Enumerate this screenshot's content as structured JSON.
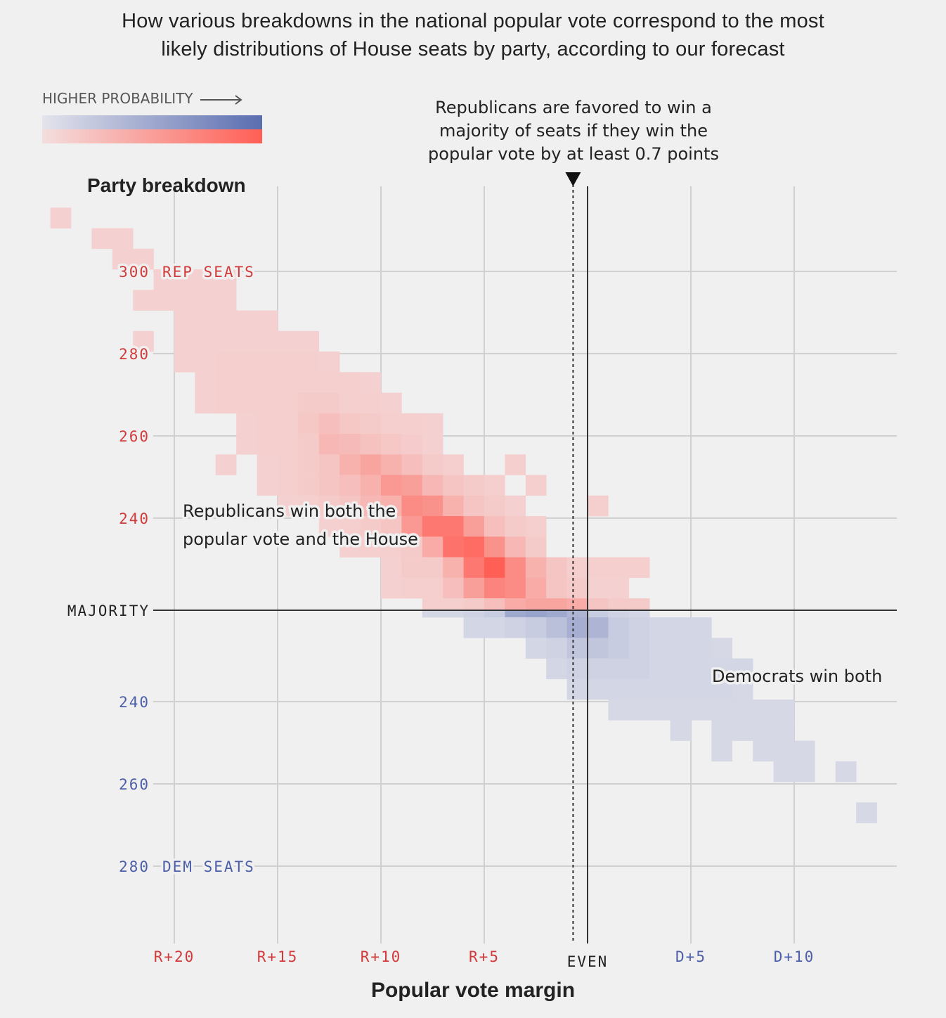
{
  "title": "How various breakdowns in the national popular vote correspond to the most likely distributions of House seats by party, according to our forecast",
  "title_lines": [
    "How various breakdowns in the national popular vote correspond to the most",
    "likely distributions of House seats by party, according to our forecast"
  ],
  "legend": {
    "label": "HIGHER PROBABILITY",
    "arrow_icon": "right-arrow-icon"
  },
  "colors": {
    "rep": "#ff5f55",
    "rep_light": "#f3dede",
    "dem": "#5a6db0",
    "dem_light": "#e4e4ec",
    "rep_text": "#d13b3b",
    "dem_text": "#4c5fa8",
    "background": "#f0f0f0",
    "grid": "#d0d0d0",
    "axis": "#333333"
  },
  "annotations": {
    "threshold": [
      "Republicans are favored to win a",
      "majority of seats if they win the",
      "popular vote by at least 0.7 points"
    ],
    "rep_win": [
      "Republicans win both the",
      "popular vote and the House"
    ],
    "dem_win": "Democrats win both"
  },
  "chart_data": {
    "type": "heatmap",
    "title": "How various breakdowns in the national popular vote correspond to the most likely distributions of House seats by party, according to our forecast",
    "xlabel": "Popular vote margin",
    "ylabel": "Party breakdown",
    "x_note": "margin in points; negative = Republican lead, positive = Democratic lead",
    "xlim": [
      -26,
      14
    ],
    "x_ticks": [
      {
        "value": -20,
        "label": "R+20",
        "party": "rep"
      },
      {
        "value": -15,
        "label": "R+15",
        "party": "rep"
      },
      {
        "value": -10,
        "label": "R+10",
        "party": "rep"
      },
      {
        "value": -5,
        "label": "R+5",
        "party": "rep"
      },
      {
        "value": 0,
        "label": "EVEN",
        "party": "none"
      },
      {
        "value": 5,
        "label": "D+5",
        "party": "dem"
      },
      {
        "value": 10,
        "label": "D+10",
        "party": "dem"
      }
    ],
    "y_ticks_rep": [
      {
        "value": 300,
        "label": "300",
        "suffix": "REP SEATS"
      },
      {
        "value": 280,
        "label": "280"
      },
      {
        "value": 260,
        "label": "260"
      },
      {
        "value": 240,
        "label": "240"
      }
    ],
    "y_ticks_dem": [
      {
        "value": 240,
        "label": "240"
      },
      {
        "value": 260,
        "label": "260"
      },
      {
        "value": 280,
        "label": "280",
        "suffix": "DEM SEATS"
      }
    ],
    "majority": {
      "label": "MAJORITY",
      "rep_seats": 218
    },
    "threshold_marker": {
      "margin": -0.7,
      "style": "dotted"
    },
    "bin": {
      "margin_width": 1,
      "seat_height": 5
    },
    "rep_cells": [
      {
        "m": -26,
        "s": 313,
        "v": 0.1
      },
      {
        "m": -24,
        "s": 308,
        "v": 0.1
      },
      {
        "m": -23,
        "s": 308,
        "v": 0.1
      },
      {
        "m": -23,
        "s": 303,
        "v": 0.1
      },
      {
        "m": -22,
        "s": 303,
        "v": 0.1
      },
      {
        "m": -21,
        "s": 298,
        "v": 0.1
      },
      {
        "m": -20,
        "s": 298,
        "v": 0.1
      },
      {
        "m": -19,
        "s": 298,
        "v": 0.1
      },
      {
        "m": -18,
        "s": 298,
        "v": 0.1
      },
      {
        "m": -22,
        "s": 293,
        "v": 0.1
      },
      {
        "m": -21,
        "s": 293,
        "v": 0.1
      },
      {
        "m": -20,
        "s": 293,
        "v": 0.1
      },
      {
        "m": -19,
        "s": 293,
        "v": 0.1
      },
      {
        "m": -18,
        "s": 293,
        "v": 0.1
      },
      {
        "m": -20,
        "s": 288,
        "v": 0.1
      },
      {
        "m": -19,
        "s": 288,
        "v": 0.1
      },
      {
        "m": -18,
        "s": 288,
        "v": 0.1
      },
      {
        "m": -17,
        "s": 288,
        "v": 0.1
      },
      {
        "m": -16,
        "s": 288,
        "v": 0.1
      },
      {
        "m": -22,
        "s": 283,
        "v": 0.1
      },
      {
        "m": -20,
        "s": 283,
        "v": 0.1
      },
      {
        "m": -19,
        "s": 283,
        "v": 0.1
      },
      {
        "m": -18,
        "s": 283,
        "v": 0.1
      },
      {
        "m": -17,
        "s": 283,
        "v": 0.1
      },
      {
        "m": -16,
        "s": 283,
        "v": 0.1
      },
      {
        "m": -15,
        "s": 283,
        "v": 0.1
      },
      {
        "m": -14,
        "s": 283,
        "v": 0.1
      },
      {
        "m": -20,
        "s": 278,
        "v": 0.1
      },
      {
        "m": -19,
        "s": 278,
        "v": 0.1
      },
      {
        "m": -18,
        "s": 278,
        "v": 0.12
      },
      {
        "m": -17,
        "s": 278,
        "v": 0.12
      },
      {
        "m": -16,
        "s": 278,
        "v": 0.12
      },
      {
        "m": -15,
        "s": 278,
        "v": 0.12
      },
      {
        "m": -14,
        "s": 278,
        "v": 0.12
      },
      {
        "m": -13,
        "s": 278,
        "v": 0.1
      },
      {
        "m": -19,
        "s": 273,
        "v": 0.1
      },
      {
        "m": -18,
        "s": 273,
        "v": 0.12
      },
      {
        "m": -17,
        "s": 273,
        "v": 0.12
      },
      {
        "m": -16,
        "s": 273,
        "v": 0.12
      },
      {
        "m": -15,
        "s": 273,
        "v": 0.12
      },
      {
        "m": -14,
        "s": 273,
        "v": 0.12
      },
      {
        "m": -13,
        "s": 273,
        "v": 0.12
      },
      {
        "m": -12,
        "s": 273,
        "v": 0.12
      },
      {
        "m": -11,
        "s": 273,
        "v": 0.1
      },
      {
        "m": -19,
        "s": 268,
        "v": 0.1
      },
      {
        "m": -18,
        "s": 268,
        "v": 0.12
      },
      {
        "m": -17,
        "s": 268,
        "v": 0.12
      },
      {
        "m": -16,
        "s": 268,
        "v": 0.12
      },
      {
        "m": -15,
        "s": 268,
        "v": 0.12
      },
      {
        "m": -14,
        "s": 268,
        "v": 0.15
      },
      {
        "m": -13,
        "s": 268,
        "v": 0.15
      },
      {
        "m": -12,
        "s": 268,
        "v": 0.12
      },
      {
        "m": -11,
        "s": 268,
        "v": 0.12
      },
      {
        "m": -10,
        "s": 268,
        "v": 0.1
      },
      {
        "m": -17,
        "s": 263,
        "v": 0.1
      },
      {
        "m": -16,
        "s": 263,
        "v": 0.12
      },
      {
        "m": -15,
        "s": 263,
        "v": 0.12
      },
      {
        "m": -14,
        "s": 263,
        "v": 0.18
      },
      {
        "m": -13,
        "s": 263,
        "v": 0.25
      },
      {
        "m": -12,
        "s": 263,
        "v": 0.18
      },
      {
        "m": -11,
        "s": 263,
        "v": 0.15
      },
      {
        "m": -10,
        "s": 263,
        "v": 0.12
      },
      {
        "m": -9,
        "s": 263,
        "v": 0.12
      },
      {
        "m": -8,
        "s": 263,
        "v": 0.1
      },
      {
        "m": -17,
        "s": 258,
        "v": 0.1
      },
      {
        "m": -16,
        "s": 258,
        "v": 0.12
      },
      {
        "m": -15,
        "s": 258,
        "v": 0.12
      },
      {
        "m": -14,
        "s": 258,
        "v": 0.15
      },
      {
        "m": -13,
        "s": 258,
        "v": 0.3
      },
      {
        "m": -12,
        "s": 258,
        "v": 0.28
      },
      {
        "m": -11,
        "s": 258,
        "v": 0.22
      },
      {
        "m": -10,
        "s": 258,
        "v": 0.18
      },
      {
        "m": -9,
        "s": 258,
        "v": 0.14
      },
      {
        "m": -8,
        "s": 258,
        "v": 0.1
      },
      {
        "m": -18,
        "s": 253,
        "v": 0.1
      },
      {
        "m": -16,
        "s": 253,
        "v": 0.1
      },
      {
        "m": -15,
        "s": 253,
        "v": 0.12
      },
      {
        "m": -14,
        "s": 253,
        "v": 0.15
      },
      {
        "m": -13,
        "s": 253,
        "v": 0.2
      },
      {
        "m": -12,
        "s": 253,
        "v": 0.35
      },
      {
        "m": -11,
        "s": 253,
        "v": 0.45
      },
      {
        "m": -10,
        "s": 253,
        "v": 0.35
      },
      {
        "m": -9,
        "s": 253,
        "v": 0.25
      },
      {
        "m": -8,
        "s": 253,
        "v": 0.15
      },
      {
        "m": -7,
        "s": 253,
        "v": 0.12
      },
      {
        "m": -4,
        "s": 253,
        "v": 0.12
      },
      {
        "m": -16,
        "s": 248,
        "v": 0.1
      },
      {
        "m": -15,
        "s": 248,
        "v": 0.12
      },
      {
        "m": -14,
        "s": 248,
        "v": 0.15
      },
      {
        "m": -13,
        "s": 248,
        "v": 0.2
      },
      {
        "m": -12,
        "s": 248,
        "v": 0.25
      },
      {
        "m": -11,
        "s": 248,
        "v": 0.35
      },
      {
        "m": -10,
        "s": 248,
        "v": 0.55
      },
      {
        "m": -9,
        "s": 248,
        "v": 0.5
      },
      {
        "m": -8,
        "s": 248,
        "v": 0.3
      },
      {
        "m": -7,
        "s": 248,
        "v": 0.2
      },
      {
        "m": -6,
        "s": 248,
        "v": 0.15
      },
      {
        "m": -5,
        "s": 248,
        "v": 0.12
      },
      {
        "m": -3,
        "s": 248,
        "v": 0.12
      },
      {
        "m": -15,
        "s": 243,
        "v": 0.1
      },
      {
        "m": -14,
        "s": 243,
        "v": 0.12
      },
      {
        "m": -13,
        "s": 243,
        "v": 0.15
      },
      {
        "m": -12,
        "s": 243,
        "v": 0.2
      },
      {
        "m": -11,
        "s": 243,
        "v": 0.3
      },
      {
        "m": -10,
        "s": 243,
        "v": 0.35
      },
      {
        "m": -9,
        "s": 243,
        "v": 0.65
      },
      {
        "m": -8,
        "s": 243,
        "v": 0.6
      },
      {
        "m": -7,
        "s": 243,
        "v": 0.35
      },
      {
        "m": -6,
        "s": 243,
        "v": 0.2
      },
      {
        "m": -5,
        "s": 243,
        "v": 0.15
      },
      {
        "m": -4,
        "s": 243,
        "v": 0.1
      },
      {
        "m": 0,
        "s": 243,
        "v": 0.12
      },
      {
        "m": -13,
        "s": 238,
        "v": 0.1
      },
      {
        "m": -12,
        "s": 238,
        "v": 0.12
      },
      {
        "m": -11,
        "s": 238,
        "v": 0.15
      },
      {
        "m": -10,
        "s": 238,
        "v": 0.2
      },
      {
        "m": -9,
        "s": 238,
        "v": 0.55
      },
      {
        "m": -8,
        "s": 238,
        "v": 0.8
      },
      {
        "m": -7,
        "s": 238,
        "v": 0.8
      },
      {
        "m": -6,
        "s": 238,
        "v": 0.5
      },
      {
        "m": -5,
        "s": 238,
        "v": 0.25
      },
      {
        "m": -4,
        "s": 238,
        "v": 0.15
      },
      {
        "m": -3,
        "s": 238,
        "v": 0.12
      },
      {
        "m": -12,
        "s": 233,
        "v": 0.1
      },
      {
        "m": -11,
        "s": 233,
        "v": 0.12
      },
      {
        "m": -10,
        "s": 233,
        "v": 0.12
      },
      {
        "m": -9,
        "s": 233,
        "v": 0.15
      },
      {
        "m": -8,
        "s": 233,
        "v": 0.4
      },
      {
        "m": -7,
        "s": 233,
        "v": 0.85
      },
      {
        "m": -6,
        "s": 233,
        "v": 0.9
      },
      {
        "m": -5,
        "s": 233,
        "v": 0.6
      },
      {
        "m": -4,
        "s": 233,
        "v": 0.3
      },
      {
        "m": -3,
        "s": 233,
        "v": 0.15
      },
      {
        "m": -10,
        "s": 228,
        "v": 0.1
      },
      {
        "m": -9,
        "s": 228,
        "v": 0.15
      },
      {
        "m": -8,
        "s": 228,
        "v": 0.15
      },
      {
        "m": -7,
        "s": 228,
        "v": 0.35
      },
      {
        "m": -6,
        "s": 228,
        "v": 0.8
      },
      {
        "m": -5,
        "s": 228,
        "v": 1.0
      },
      {
        "m": -4,
        "s": 228,
        "v": 0.65
      },
      {
        "m": -3,
        "s": 228,
        "v": 0.35
      },
      {
        "m": -2,
        "s": 228,
        "v": 0.2
      },
      {
        "m": -1,
        "s": 228,
        "v": 0.12
      },
      {
        "m": 0,
        "s": 228,
        "v": 0.12
      },
      {
        "m": 1,
        "s": 228,
        "v": 0.12
      },
      {
        "m": 2,
        "s": 228,
        "v": 0.12
      },
      {
        "m": -10,
        "s": 223,
        "v": 0.1
      },
      {
        "m": -9,
        "s": 223,
        "v": 0.12
      },
      {
        "m": -8,
        "s": 223,
        "v": 0.12
      },
      {
        "m": -7,
        "s": 223,
        "v": 0.25
      },
      {
        "m": -6,
        "s": 223,
        "v": 0.5
      },
      {
        "m": -5,
        "s": 223,
        "v": 0.7
      },
      {
        "m": -4,
        "s": 223,
        "v": 0.65
      },
      {
        "m": -3,
        "s": 223,
        "v": 0.4
      },
      {
        "m": -2,
        "s": 223,
        "v": 0.2
      },
      {
        "m": -1,
        "s": 223,
        "v": 0.15
      },
      {
        "m": 0,
        "s": 223,
        "v": 0.1
      },
      {
        "m": 1,
        "s": 223,
        "v": 0.1
      },
      {
        "m": -8,
        "s": 218,
        "v": 0.12
      },
      {
        "m": -7,
        "s": 218,
        "v": 0.12
      },
      {
        "m": -6,
        "s": 218,
        "v": 0.15
      },
      {
        "m": -5,
        "s": 218,
        "v": 0.25
      },
      {
        "m": -4,
        "s": 218,
        "v": 0.4
      },
      {
        "m": -3,
        "s": 218,
        "v": 0.45
      },
      {
        "m": -2,
        "s": 218,
        "v": 0.45
      },
      {
        "m": -1,
        "s": 218,
        "v": 0.4
      },
      {
        "m": 0,
        "s": 218,
        "v": 0.2
      },
      {
        "m": 1,
        "s": 218,
        "v": 0.15
      },
      {
        "m": 2,
        "s": 218,
        "v": 0.15
      }
    ],
    "dem_cells": [
      {
        "m": -8,
        "s": 218,
        "v": 0.12
      },
      {
        "m": -7,
        "s": 218,
        "v": 0.12
      },
      {
        "m": -6,
        "s": 218,
        "v": 0.15
      },
      {
        "m": -5,
        "s": 218,
        "v": 0.2
      },
      {
        "m": -4,
        "s": 218,
        "v": 0.5
      },
      {
        "m": -3,
        "s": 218,
        "v": 0.55
      },
      {
        "m": -2,
        "s": 218,
        "v": 0.5
      },
      {
        "m": -1,
        "s": 218,
        "v": 0.4
      },
      {
        "m": 0,
        "s": 218,
        "v": 0.2
      },
      {
        "m": 1,
        "s": 218,
        "v": 0.15
      },
      {
        "m": 2,
        "s": 218,
        "v": 0.12
      },
      {
        "m": -6,
        "s": 222,
        "v": 0.12
      },
      {
        "m": -5,
        "s": 222,
        "v": 0.12
      },
      {
        "m": -4,
        "s": 222,
        "v": 0.15
      },
      {
        "m": -3,
        "s": 222,
        "v": 0.2
      },
      {
        "m": -2,
        "s": 222,
        "v": 0.3
      },
      {
        "m": -1,
        "s": 222,
        "v": 0.45
      },
      {
        "m": 0,
        "s": 222,
        "v": 0.4
      },
      {
        "m": 1,
        "s": 222,
        "v": 0.2
      },
      {
        "m": 2,
        "s": 222,
        "v": 0.15
      },
      {
        "m": 3,
        "s": 222,
        "v": 0.12
      },
      {
        "m": 4,
        "s": 222,
        "v": 0.12
      },
      {
        "m": 5,
        "s": 222,
        "v": 0.12
      },
      {
        "m": -3,
        "s": 227,
        "v": 0.12
      },
      {
        "m": -2,
        "s": 227,
        "v": 0.15
      },
      {
        "m": -1,
        "s": 227,
        "v": 0.25
      },
      {
        "m": 0,
        "s": 227,
        "v": 0.25
      },
      {
        "m": 1,
        "s": 227,
        "v": 0.2
      },
      {
        "m": 2,
        "s": 227,
        "v": 0.15
      },
      {
        "m": 3,
        "s": 227,
        "v": 0.12
      },
      {
        "m": 4,
        "s": 227,
        "v": 0.12
      },
      {
        "m": 5,
        "s": 227,
        "v": 0.12
      },
      {
        "m": 6,
        "s": 227,
        "v": 0.1
      },
      {
        "m": -2,
        "s": 232,
        "v": 0.12
      },
      {
        "m": -1,
        "s": 232,
        "v": 0.15
      },
      {
        "m": 0,
        "s": 232,
        "v": 0.15
      },
      {
        "m": 1,
        "s": 232,
        "v": 0.15
      },
      {
        "m": 2,
        "s": 232,
        "v": 0.15
      },
      {
        "m": 3,
        "s": 232,
        "v": 0.12
      },
      {
        "m": 4,
        "s": 232,
        "v": 0.12
      },
      {
        "m": 5,
        "s": 232,
        "v": 0.12
      },
      {
        "m": 6,
        "s": 232,
        "v": 0.12
      },
      {
        "m": 7,
        "s": 232,
        "v": 0.12
      },
      {
        "m": -1,
        "s": 237,
        "v": 0.12
      },
      {
        "m": 0,
        "s": 237,
        "v": 0.12
      },
      {
        "m": 1,
        "s": 237,
        "v": 0.12
      },
      {
        "m": 2,
        "s": 237,
        "v": 0.12
      },
      {
        "m": 3,
        "s": 237,
        "v": 0.12
      },
      {
        "m": 4,
        "s": 237,
        "v": 0.12
      },
      {
        "m": 5,
        "s": 237,
        "v": 0.12
      },
      {
        "m": 6,
        "s": 237,
        "v": 0.12
      },
      {
        "m": 7,
        "s": 237,
        "v": 0.1
      },
      {
        "m": 1,
        "s": 242,
        "v": 0.1
      },
      {
        "m": 2,
        "s": 242,
        "v": 0.1
      },
      {
        "m": 3,
        "s": 242,
        "v": 0.1
      },
      {
        "m": 4,
        "s": 242,
        "v": 0.1
      },
      {
        "m": 5,
        "s": 242,
        "v": 0.1
      },
      {
        "m": 6,
        "s": 242,
        "v": 0.1
      },
      {
        "m": 7,
        "s": 242,
        "v": 0.1
      },
      {
        "m": 8,
        "s": 242,
        "v": 0.1
      },
      {
        "m": 9,
        "s": 242,
        "v": 0.1
      },
      {
        "m": 4,
        "s": 247,
        "v": 0.1
      },
      {
        "m": 6,
        "s": 247,
        "v": 0.1
      },
      {
        "m": 7,
        "s": 247,
        "v": 0.1
      },
      {
        "m": 8,
        "s": 247,
        "v": 0.1
      },
      {
        "m": 9,
        "s": 247,
        "v": 0.1
      },
      {
        "m": 6,
        "s": 252,
        "v": 0.1
      },
      {
        "m": 8,
        "s": 252,
        "v": 0.1
      },
      {
        "m": 9,
        "s": 252,
        "v": 0.1
      },
      {
        "m": 10,
        "s": 252,
        "v": 0.1
      },
      {
        "m": 9,
        "s": 257,
        "v": 0.1
      },
      {
        "m": 10,
        "s": 257,
        "v": 0.1
      },
      {
        "m": 12,
        "s": 257,
        "v": 0.1
      },
      {
        "m": 13,
        "s": 267,
        "v": 0.1
      }
    ]
  },
  "axis": {
    "ylabel": "Party breakdown",
    "xlabel": "Popular vote margin",
    "majority_label": "MAJORITY"
  }
}
